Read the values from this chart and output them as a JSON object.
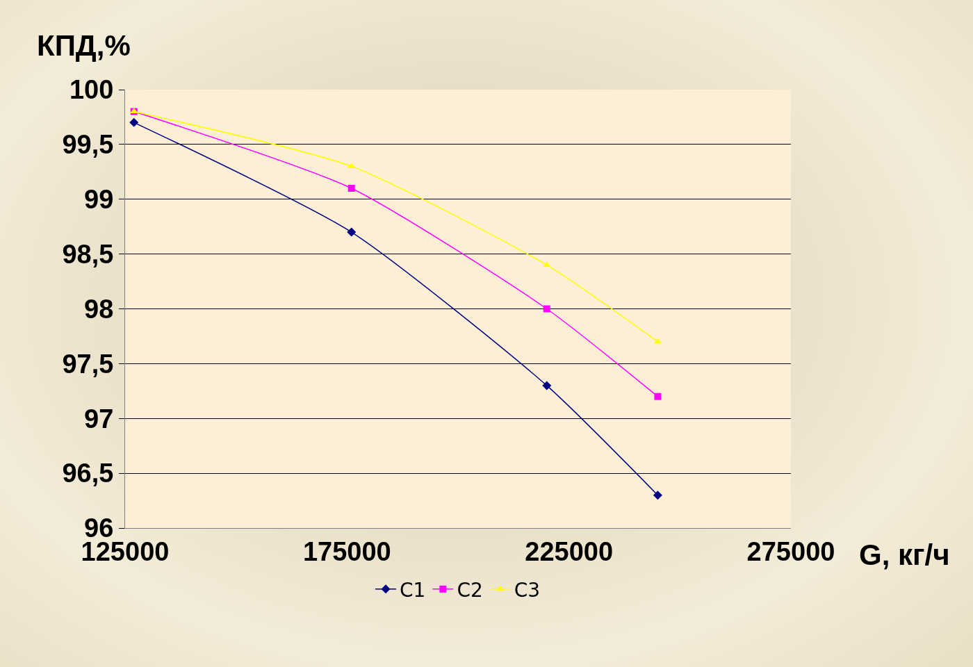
{
  "chart_data": {
    "type": "line",
    "xlabel": "G, кг/ч",
    "ylabel": "КПД,%",
    "x": [
      127000,
      176000,
      220000,
      245000
    ],
    "series": [
      {
        "name": "C1",
        "color": "#000080",
        "marker": "diamond",
        "values": [
          99.7,
          98.7,
          97.3,
          96.3
        ]
      },
      {
        "name": "C2",
        "color": "#ff00ff",
        "marker": "square",
        "values": [
          99.8,
          99.1,
          98.0,
          97.2
        ]
      },
      {
        "name": "C3",
        "color": "#ffff00",
        "marker": "triangle",
        "values": [
          99.8,
          99.3,
          98.4,
          97.7
        ]
      }
    ],
    "xlim": [
      125000,
      275000
    ],
    "xticks": [
      125000,
      175000,
      225000,
      275000
    ],
    "ylim": [
      96,
      100
    ],
    "yticks": [
      96,
      {
        "value": 96.5,
        "label": "96,5"
      },
      97,
      {
        "value": 97.5,
        "label": "97,5"
      },
      98,
      {
        "value": 98.5,
        "label": "98,5"
      },
      99,
      {
        "value": 99.5,
        "label": "99,5"
      },
      100
    ],
    "grid": "y",
    "legend": "bottom",
    "line_style": "solid"
  }
}
